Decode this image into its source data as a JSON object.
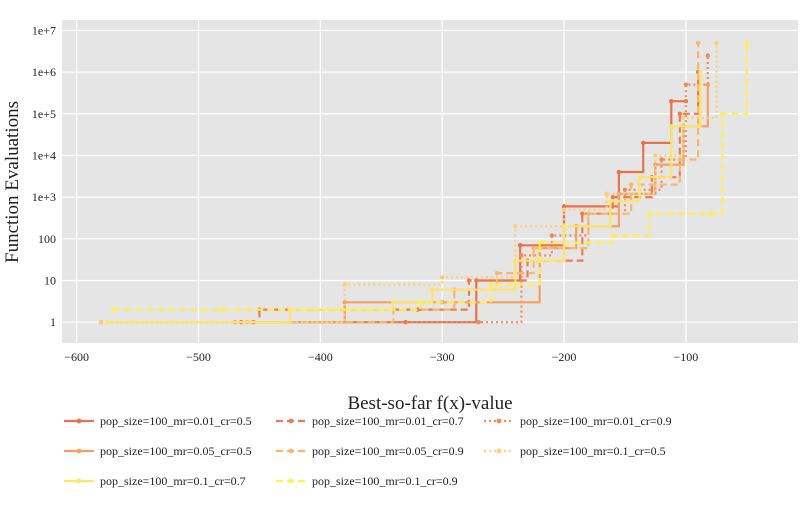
{
  "chart_data": {
    "type": "line",
    "xlabel": "Best-so-far f(x)-value",
    "ylabel": "Function Evaluations",
    "xlim": [
      -612,
      -8
    ],
    "ylog": true,
    "ylim_log10": [
      -0.5,
      7.25
    ],
    "xticks": [
      -600,
      -500,
      -400,
      -300,
      -200,
      -100
    ],
    "xtick_labels": [
      "−600",
      "−500",
      "−400",
      "−300",
      "−200",
      "−100"
    ],
    "yticks": [
      1,
      10,
      100,
      1000,
      10000,
      100000,
      1000000,
      10000000
    ],
    "ytick_labels": [
      "1",
      "10",
      "100",
      "1e+3",
      "1e+4",
      "1e+5",
      "1e+6",
      "1e+7"
    ],
    "grid": true,
    "legend_position": "bottom",
    "series": [
      {
        "name": "pop_size=100_mr=0.01_cr=0.5",
        "color": "#e8734a",
        "dash": "solid",
        "x": [
          -465,
          -330,
          -272,
          -236,
          -236,
          -200,
          -200,
          -155,
          -135,
          -112,
          -100
        ],
        "y": [
          1,
          1,
          10,
          70,
          70,
          600,
          600,
          4000,
          20000,
          200000,
          200000
        ]
      },
      {
        "name": "pop_size=100_mr=0.01_cr=0.7",
        "color": "#ec7c50",
        "dash": "dash",
        "x": [
          -455,
          -450,
          -320,
          -278,
          -230,
          -185,
          -160,
          -128,
          -105,
          -90
        ],
        "y": [
          1,
          2,
          2,
          10,
          30,
          400,
          1000,
          3000,
          100000,
          1000000
        ]
      },
      {
        "name": "pop_size=100_mr=0.01_cr=0.9",
        "color": "#f08c58",
        "dash": "dot",
        "x": [
          -580,
          -270,
          -235,
          -210,
          -180,
          -150,
          -120,
          -100,
          -82
        ],
        "y": [
          1,
          1,
          40,
          120,
          400,
          1500,
          8000,
          500000,
          2500000
        ]
      },
      {
        "name": "pop_size=100_mr=0.05_cr=0.5",
        "color": "#f5a060",
        "dash": "solid",
        "x": [
          -470,
          -380,
          -300,
          -220,
          -190,
          -155,
          -125,
          -102,
          -82
        ],
        "y": [
          1,
          3,
          3,
          60,
          200,
          1200,
          6000,
          50000,
          500000
        ]
      },
      {
        "name": "pop_size=100_mr=0.05_cr=0.9",
        "color": "#f8b86a",
        "dash": "dash",
        "x": [
          -460,
          -340,
          -290,
          -255,
          -225,
          -180,
          -145,
          -105,
          -90
        ],
        "y": [
          1,
          2,
          6,
          15,
          60,
          400,
          2000,
          8000,
          5000000
        ]
      },
      {
        "name": "pop_size=100_mr=0.1_cr=0.5",
        "color": "#fbd070",
        "dash": "dot",
        "x": [
          -580,
          -380,
          -300,
          -240,
          -200,
          -165,
          -125,
          -102,
          -75
        ],
        "y": [
          1,
          8,
          12,
          200,
          500,
          1200,
          10000,
          80000,
          5000000
        ]
      },
      {
        "name": "pop_size=100_mr=0.1_cr=0.7",
        "color": "#fde566",
        "dash": "solid",
        "x": [
          -575,
          -425,
          -340,
          -308,
          -240,
          -200,
          -162,
          -138,
          -112,
          -88
        ],
        "y": [
          1,
          2,
          3,
          6,
          30,
          200,
          800,
          3000,
          50000,
          1000000
        ]
      },
      {
        "name": "pop_size=100_mr=0.1_cr=0.9",
        "color": "#fff04c",
        "dash": "dash",
        "x": [
          -570,
          -480,
          -318,
          -260,
          -220,
          -160,
          -130,
          -80,
          -70,
          -50
        ],
        "y": [
          2,
          2,
          3,
          8,
          80,
          120,
          400,
          400,
          100000,
          5000000
        ]
      }
    ]
  }
}
